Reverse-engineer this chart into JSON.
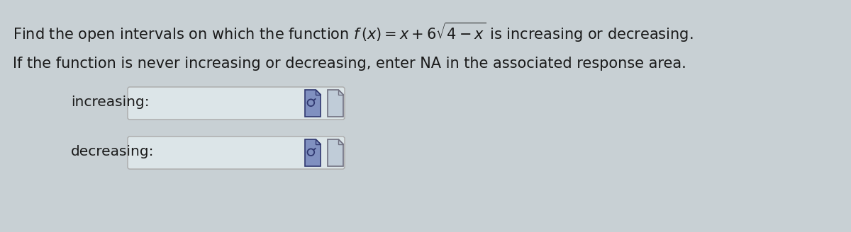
{
  "background_color": "#c8d0d4",
  "text_color": "#1a1a1a",
  "line1_text": "Find the open intervals on which the function ",
  "line1_math": "$f\\,(x) = x + 6\\sqrt{4-x}$",
  "line1_suffix": " is increasing or decreasing.",
  "line2": "If the function is never increasing or decreasing, enter NA in the associated response area.",
  "label_increasing": "increasing:",
  "label_decreasing": "decreasing:",
  "box_facecolor": "#dce5e8",
  "box_edgecolor": "#aaaaaa",
  "font_size_main": 15,
  "font_size_labels": 14.5,
  "icon1_face": "#8090c0",
  "icon1_edge": "#303870",
  "icon2_face": "#c0ccd8",
  "icon2_edge": "#707080"
}
